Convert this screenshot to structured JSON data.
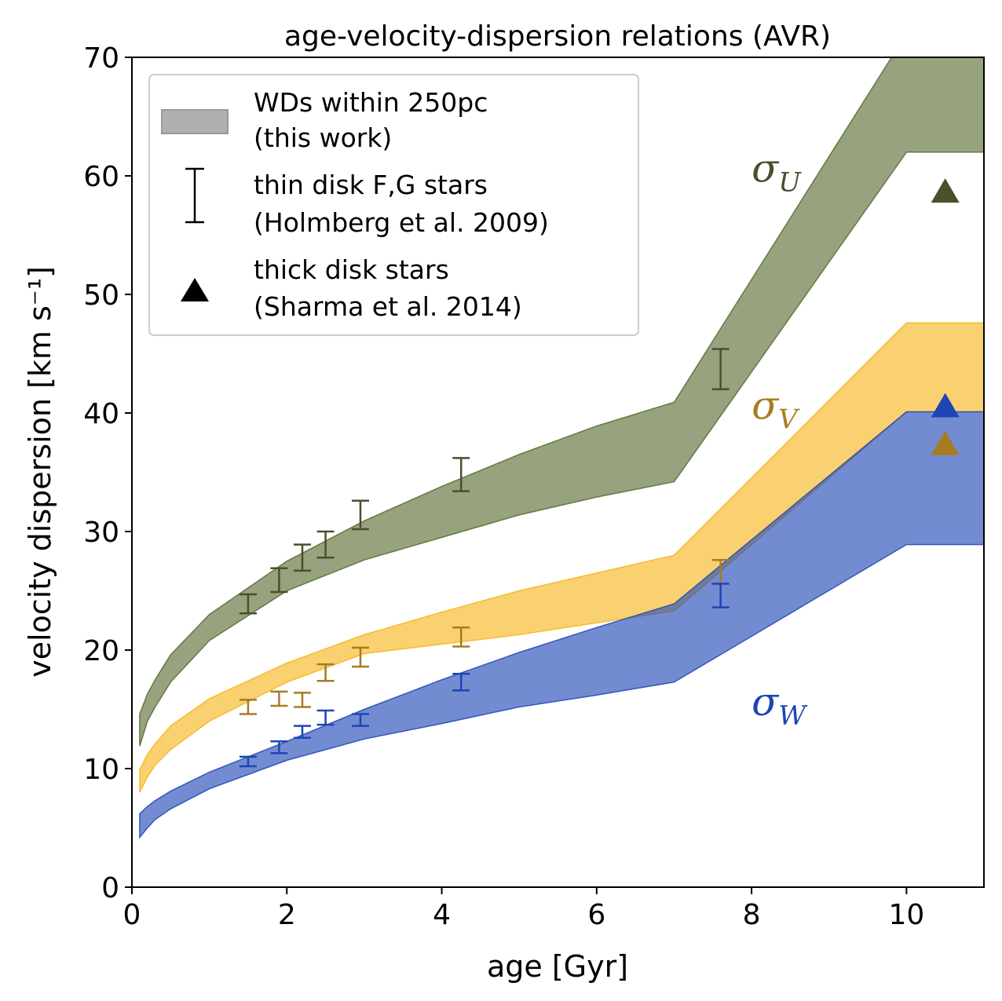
{
  "chart_data": {
    "type": "area",
    "title": "age-velocity-dispersion relations (AVR)",
    "xlabel": "age [Gyr]",
    "ylabel": "velocity dispersion [km s⁻¹]",
    "xlim": [
      0,
      11
    ],
    "ylim": [
      0,
      70
    ],
    "xticks": [
      0,
      2,
      4,
      6,
      8,
      10
    ],
    "yticks": [
      0,
      10,
      20,
      30,
      40,
      50,
      60,
      70
    ],
    "grid": false,
    "legend": {
      "placement": "top-left",
      "entries": [
        {
          "kind": "band",
          "line1": "WDs within 250pc",
          "line2": "(this work)"
        },
        {
          "kind": "errorbar",
          "line1": "thin disk F,G stars",
          "line2": "(Holmberg et al. 2009)"
        },
        {
          "kind": "triangle",
          "line1": "thick disk stars",
          "line2": "(Sharma et al. 2014)"
        }
      ]
    },
    "series": [
      {
        "label": "σ",
        "sub": "U",
        "color": "#556b2f",
        "band": {
          "x": [
            0.1,
            0.2,
            0.3,
            0.5,
            1.0,
            2.0,
            3.0,
            4.0,
            5.0,
            6.0,
            7.0,
            10.0,
            11.0
          ],
          "low": [
            11.9,
            14.0,
            15.2,
            17.3,
            20.8,
            25.0,
            27.6,
            29.5,
            31.4,
            32.9,
            34.2,
            62.0,
            62.0
          ],
          "high": [
            14.6,
            16.3,
            17.5,
            19.6,
            23.0,
            27.5,
            30.9,
            33.8,
            36.5,
            38.9,
            40.9,
            72.0,
            72.0
          ]
        },
        "holmberg": [
          {
            "x": 1.5,
            "y": 23.9,
            "err": 0.8
          },
          {
            "x": 1.9,
            "y": 25.9,
            "err": 1.0
          },
          {
            "x": 2.2,
            "y": 27.8,
            "err": 1.1
          },
          {
            "x": 2.5,
            "y": 28.9,
            "err": 1.1
          },
          {
            "x": 2.95,
            "y": 31.4,
            "err": 1.2
          },
          {
            "x": 4.25,
            "y": 34.8,
            "err": 1.4
          },
          {
            "x": 7.6,
            "y": 43.7,
            "err": 1.7
          }
        ],
        "sharma": {
          "x": 10.5,
          "y": 58.6
        },
        "text_pos": {
          "x": 8.0,
          "y": 59.5
        }
      },
      {
        "label": "σ",
        "sub": "V",
        "color": "#f6b519",
        "marker_color": "#a77c20",
        "band": {
          "x": [
            0.1,
            0.2,
            0.3,
            0.5,
            1.0,
            2.0,
            3.0,
            4.0,
            5.0,
            6.0,
            7.0,
            10.0,
            11.0
          ],
          "low": [
            8.0,
            9.3,
            10.3,
            11.6,
            14.0,
            17.3,
            19.7,
            20.5,
            21.3,
            22.3,
            23.3,
            40.1,
            40.1
          ],
          "high": [
            9.9,
            11.2,
            12.1,
            13.6,
            15.9,
            18.9,
            21.3,
            23.2,
            25.0,
            26.5,
            28.0,
            47.6,
            47.6
          ]
        },
        "holmberg": [
          {
            "x": 1.5,
            "y": 15.2,
            "err": 0.6
          },
          {
            "x": 1.9,
            "y": 15.9,
            "err": 0.6
          },
          {
            "x": 2.2,
            "y": 15.8,
            "err": 0.6
          },
          {
            "x": 2.5,
            "y": 18.1,
            "err": 0.7
          },
          {
            "x": 2.95,
            "y": 19.4,
            "err": 0.8
          },
          {
            "x": 4.25,
            "y": 21.1,
            "err": 0.8
          },
          {
            "x": 7.6,
            "y": 26.6,
            "err": 1.0
          }
        ],
        "sharma": {
          "x": 10.5,
          "y": 37.3
        },
        "text_pos": {
          "x": 8.0,
          "y": 39.5
        }
      },
      {
        "label": "σ",
        "sub": "W",
        "color": "#1d45b5",
        "band": {
          "x": [
            0.1,
            0.2,
            0.3,
            0.5,
            1.0,
            2.0,
            3.0,
            4.0,
            5.0,
            6.0,
            7.0,
            10.0,
            11.0
          ],
          "low": [
            4.2,
            5.0,
            5.7,
            6.6,
            8.3,
            10.7,
            12.5,
            13.8,
            15.2,
            16.2,
            17.3,
            28.9,
            28.9
          ],
          "high": [
            6.2,
            6.8,
            7.3,
            8.1,
            9.7,
            12.3,
            15.0,
            17.5,
            19.8,
            21.9,
            23.9,
            40.1,
            40.1
          ]
        },
        "holmberg": [
          {
            "x": 1.5,
            "y": 10.6,
            "err": 0.4
          },
          {
            "x": 1.9,
            "y": 11.8,
            "err": 0.5
          },
          {
            "x": 2.2,
            "y": 13.1,
            "err": 0.5
          },
          {
            "x": 2.5,
            "y": 14.3,
            "err": 0.6
          },
          {
            "x": 2.95,
            "y": 14.1,
            "err": 0.5
          },
          {
            "x": 4.25,
            "y": 17.3,
            "err": 0.7
          },
          {
            "x": 7.6,
            "y": 24.6,
            "err": 1.0
          }
        ],
        "sharma": {
          "x": 10.5,
          "y": 40.5
        },
        "text_pos": {
          "x": 8.0,
          "y": 14.5
        }
      }
    ]
  }
}
